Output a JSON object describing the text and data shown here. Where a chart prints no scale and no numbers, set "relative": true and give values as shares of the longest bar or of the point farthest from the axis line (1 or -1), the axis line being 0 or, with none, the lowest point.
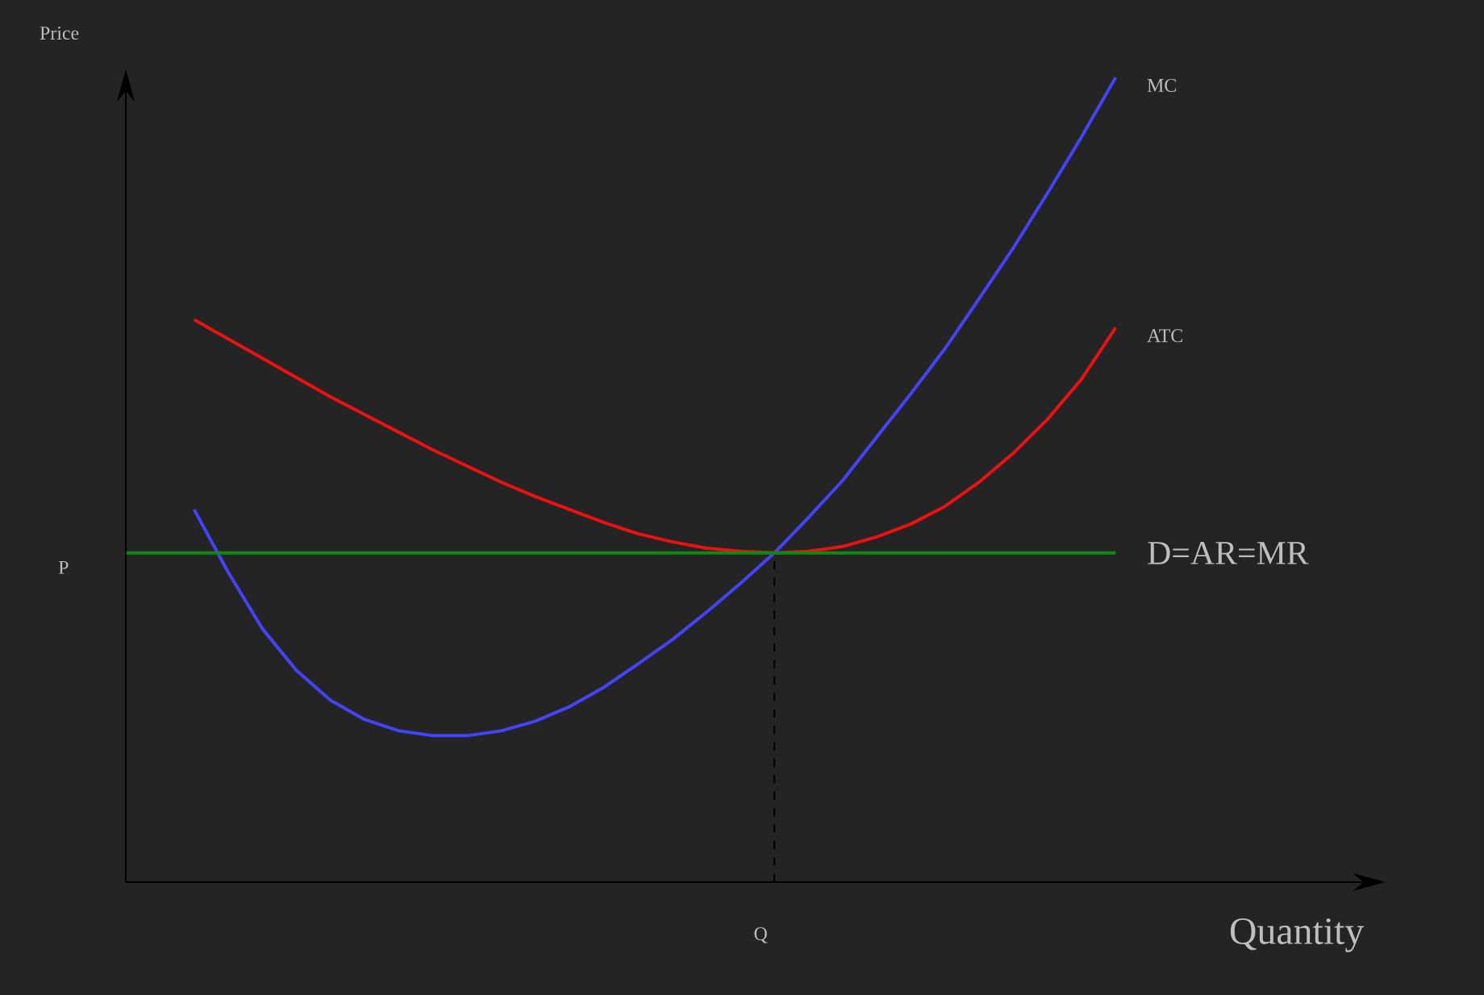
{
  "chart_data": {
    "type": "line",
    "relative": true,
    "xlabel": "Quantity",
    "ylabel": "Price",
    "legend": false,
    "categories": [
      null,
      null,
      null,
      null,
      null,
      null,
      null,
      null,
      null,
      null,
      null,
      null,
      null,
      null,
      null,
      null,
      null,
      null,
      null,
      null,
      null,
      null,
      null,
      null,
      null,
      null,
      null,
      null,
      null,
      null
    ],
    "series": [
      {
        "name": "MC",
        "color": "#4444ff",
        "values": [
          null,
          null,
          0.463,
          0.385,
          0.315,
          0.263,
          0.226,
          0.202,
          0.188,
          0.182,
          0.182,
          0.188,
          0.2,
          0.218,
          0.242,
          0.271,
          0.301,
          0.335,
          0.371,
          0.409,
          0.453,
          0.499,
          0.553,
          0.607,
          0.663,
          0.725,
          0.788,
          0.856,
          0.926,
          1
        ]
      },
      {
        "name": "ATC",
        "color": "#ee1111",
        "values": [
          null,
          null,
          0.699,
          0.675,
          0.651,
          0.627,
          0.603,
          0.581,
          0.559,
          0.537,
          0.517,
          0.497,
          0.479,
          0.463,
          0.447,
          0.433,
          0.423,
          0.415,
          0.411,
          0.409,
          0.411,
          0.417,
          0.429,
          0.445,
          0.467,
          0.497,
          0.533,
          0.575,
          0.625,
          0.689
        ]
      },
      {
        "name": "D=AR=MR",
        "color": "#118811",
        "values": [
          0.409,
          0.409,
          0.409,
          0.409,
          0.409,
          0.409,
          0.409,
          0.409,
          0.409,
          0.409,
          0.409,
          0.409,
          0.409,
          0.409,
          0.409,
          0.409,
          0.409,
          0.409,
          0.409,
          0.409,
          0.409,
          0.409,
          0.409,
          0.409,
          0.409,
          0.409,
          0.409,
          0.409,
          0.409,
          0.409
        ]
      }
    ],
    "annotations": [
      "P",
      "Q"
    ]
  }
}
